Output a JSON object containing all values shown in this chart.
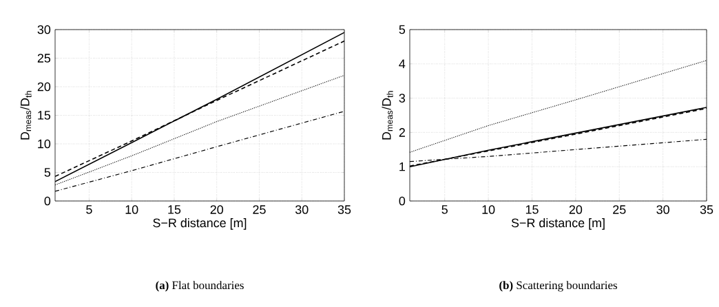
{
  "chart_data": [
    {
      "type": "line",
      "title": "**(a)** Flat boundaries",
      "xlabel": "S−R distance [m]",
      "ylabel": "D$_{meas}$/D$_{th}$",
      "xlim": [
        1,
        35
      ],
      "ylim": [
        0,
        30
      ],
      "xticks": [
        5,
        10,
        15,
        20,
        25,
        30,
        35
      ],
      "yticks": [
        0,
        5,
        10,
        15,
        20,
        25,
        30
      ],
      "grid": true,
      "series": [
        {
          "color": "#000000",
          "line_style": "solid",
          "x": [
            1,
            10,
            20,
            35
          ],
          "values": [
            3.4,
            10.2,
            17.8,
            29.5
          ]
        },
        {
          "color": "#000000",
          "line_style": "dashed",
          "x": [
            1,
            10,
            20,
            35
          ],
          "values": [
            4.3,
            10.5,
            17.6,
            28
          ]
        },
        {
          "color": "#000000",
          "line_style": "dotted",
          "x": [
            1,
            10,
            20,
            35
          ],
          "values": [
            2.8,
            7.9,
            13.9,
            22
          ]
        },
        {
          "color": "#000000",
          "line_style": "dashdot",
          "x": [
            1,
            10,
            20,
            35
          ],
          "values": [
            1.7,
            5.3,
            9.5,
            15.7
          ]
        }
      ]
    },
    {
      "type": "line",
      "title": "**(b)** Scattering boundaries",
      "xlabel": "S−R distance [m]",
      "ylabel": "D$_{meas}$/D$_{th}$",
      "xlim": [
        1,
        35
      ],
      "ylim": [
        0,
        5
      ],
      "xticks": [
        5,
        10,
        15,
        20,
        25,
        30,
        35
      ],
      "yticks": [
        0,
        1,
        2,
        3,
        4,
        5
      ],
      "grid": true,
      "series": [
        {
          "color": "#000000",
          "line_style": "solid",
          "x": [
            1,
            10,
            20,
            35
          ],
          "values": [
            1.0,
            1.48,
            1.98,
            2.73
          ]
        },
        {
          "color": "#000000",
          "line_style": "dashed",
          "x": [
            1,
            10,
            20,
            35
          ],
          "values": [
            1.02,
            1.46,
            1.95,
            2.7
          ]
        },
        {
          "color": "#000000",
          "line_style": "dotted",
          "x": [
            1,
            10,
            20,
            35
          ],
          "values": [
            1.42,
            2.2,
            2.95,
            4.1
          ]
        },
        {
          "color": "#000000",
          "line_style": "dashdot",
          "x": [
            1,
            10,
            20,
            35
          ],
          "values": [
            1.15,
            1.3,
            1.5,
            1.8
          ]
        }
      ]
    }
  ]
}
